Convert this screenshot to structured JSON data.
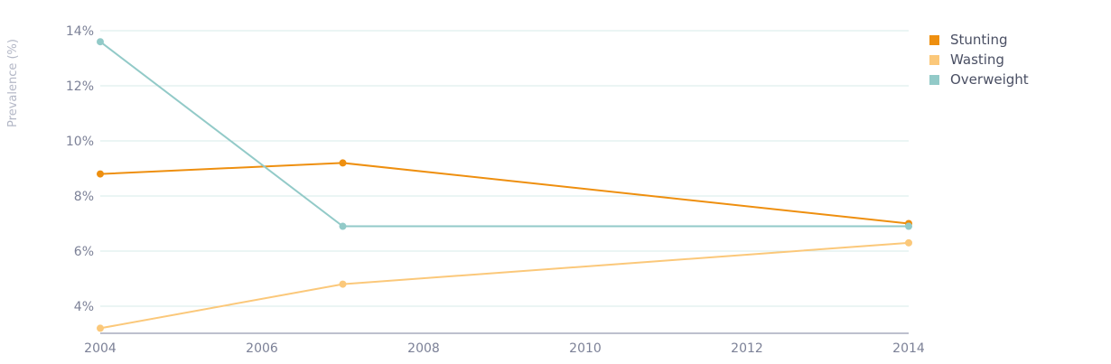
{
  "chart_data": {
    "type": "line",
    "title": "",
    "xlabel": "",
    "ylabel": "Prevalence (%)",
    "x": [
      2004,
      2007,
      2014
    ],
    "xlim": [
      2004,
      2014
    ],
    "xticks": [
      "2004",
      "2006",
      "2008",
      "2010",
      "2012",
      "2014"
    ],
    "ylim": [
      3,
      14
    ],
    "yticks": [
      "4%",
      "6%",
      "8%",
      "10%",
      "12%",
      "14%"
    ],
    "grid": true,
    "legend_position": "top-right",
    "series": [
      {
        "name": "Stunting",
        "color": "#ee8f0f",
        "values": [
          8.8,
          9.2,
          7.0
        ]
      },
      {
        "name": "Wasting",
        "color": "#fbc87a",
        "values": [
          3.2,
          4.8,
          6.3
        ]
      },
      {
        "name": "Overweight",
        "color": "#92cac8",
        "values": [
          13.6,
          6.9,
          6.9
        ]
      }
    ]
  }
}
